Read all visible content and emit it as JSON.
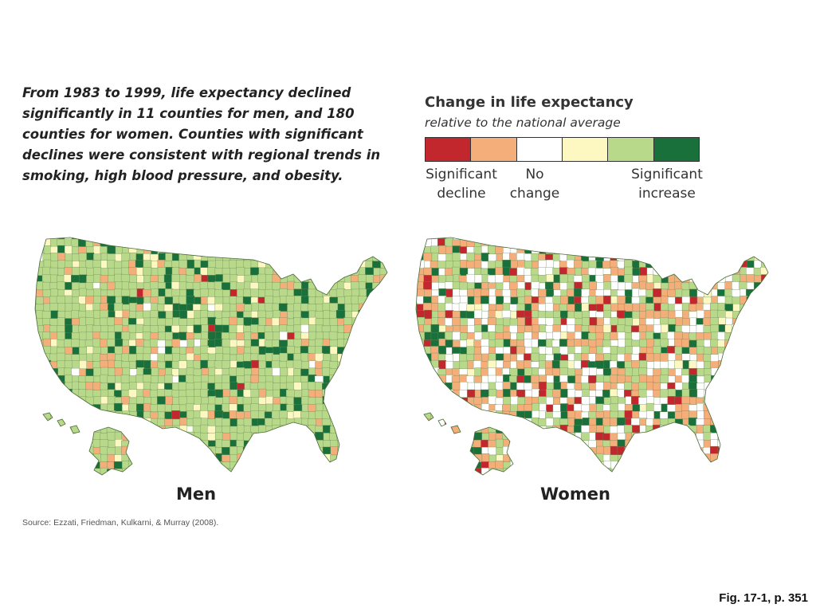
{
  "headline": "From 1983 to 1999, life expectancy declined significantly in 11 counties for men, and 180 counties for women. Counties with significant declines were consistent with regional trends in smoking, high blood pressure, and obesity.",
  "legend": {
    "title": "Change in life expectancy",
    "subtitle": "relative to the national average",
    "categories": [
      {
        "key": "significant-decline",
        "color": "#c1272d"
      },
      {
        "key": "decline",
        "color": "#f3ae7a"
      },
      {
        "key": "no-change",
        "color": "#ffffff"
      },
      {
        "key": "slight-increase",
        "color": "#fdf7c2"
      },
      {
        "key": "increase",
        "color": "#b9d98a"
      },
      {
        "key": "significant-increase",
        "color": "#19703a"
      }
    ],
    "label_left_1": "Significant",
    "label_left_2": "decline",
    "label_mid_1": "No",
    "label_mid_2": "change",
    "label_right_1": "Significant",
    "label_right_2": "increase"
  },
  "maps": [
    {
      "key": "men",
      "caption": "Men",
      "weights": [
        0.01,
        0.09,
        0.02,
        0.07,
        0.68,
        0.13
      ]
    },
    {
      "key": "women",
      "caption": "Women",
      "weights": [
        0.07,
        0.28,
        0.27,
        0.03,
        0.25,
        0.1
      ]
    }
  ],
  "source": "Source: Ezzati, Friedman, Kulkarni, & Murray (2008).",
  "figure_ref": "Fig. 17-1, p. 351"
}
